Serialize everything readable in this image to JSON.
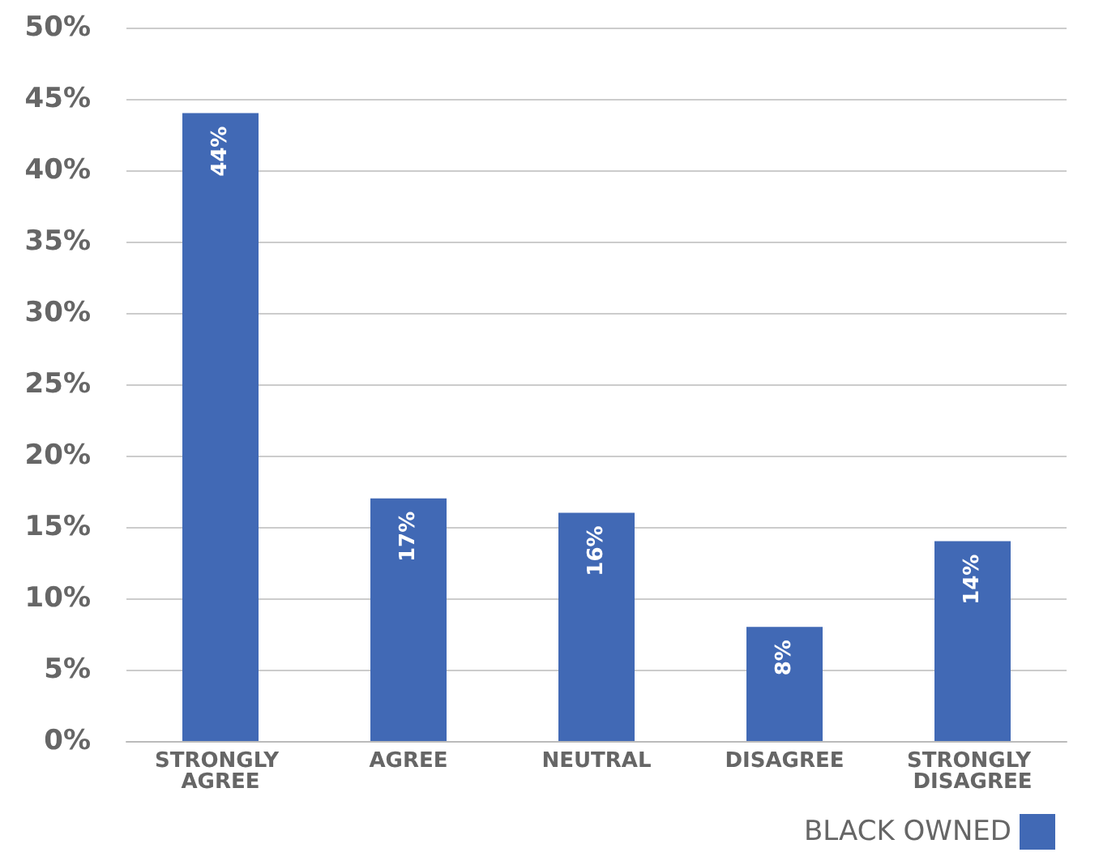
{
  "chart_data": {
    "type": "bar",
    "categories": [
      "STRONGLY AGREE",
      "AGREE",
      "NEUTRAL",
      "DISAGREE",
      "STRONGLY DISAGREE"
    ],
    "series": [
      {
        "name": "BLACK OWNED",
        "color": "#4169b5",
        "values": [
          44,
          17,
          16,
          8,
          14
        ],
        "value_labels": [
          "44%",
          "17%",
          "16%",
          "8%",
          "14%"
        ]
      }
    ],
    "ylim": [
      0,
      50
    ],
    "yticks": [
      {
        "value": 0,
        "label": "0%"
      },
      {
        "value": 5,
        "label": "5%"
      },
      {
        "value": 10,
        "label": "10%"
      },
      {
        "value": 15,
        "label": "15%"
      },
      {
        "value": 20,
        "label": "20%"
      },
      {
        "value": 25,
        "label": "25%"
      },
      {
        "value": 30,
        "label": "30%"
      },
      {
        "value": 35,
        "label": "35%"
      },
      {
        "value": 40,
        "label": "40%"
      },
      {
        "value": 45,
        "label": "45%"
      },
      {
        "value": 50,
        "label": "50%"
      }
    ],
    "grid": "y",
    "legend": "bottom right"
  }
}
